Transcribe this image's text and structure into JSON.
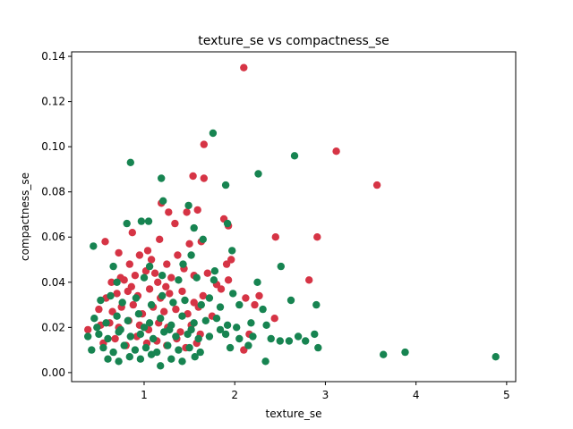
{
  "chart_data": {
    "type": "scatter",
    "title": "texture_se vs compactness_se",
    "xlabel": "texture_se",
    "ylabel": "compactness_se",
    "xlim": [
      0.2,
      5.1
    ],
    "ylim": [
      -0.004,
      0.142
    ],
    "x_ticks": [
      1,
      2,
      3,
      4,
      5
    ],
    "x_tick_labels": [
      "1",
      "2",
      "3",
      "4",
      "5"
    ],
    "y_ticks": [
      0.0,
      0.02,
      0.04,
      0.06,
      0.08,
      0.1,
      0.12,
      0.14
    ],
    "y_tick_labels": [
      "0.00",
      "0.02",
      "0.04",
      "0.06",
      "0.08",
      "0.10",
      "0.12",
      "0.14"
    ],
    "grid": false,
    "legend": "none",
    "colors": {
      "series_red": "#d63445",
      "series_green": "#178451"
    },
    "series": [
      {
        "color": "#d63445",
        "points": [
          [
            2.1,
            0.135
          ],
          [
            3.12,
            0.098
          ],
          [
            3.57,
            0.083
          ],
          [
            1.66,
            0.101
          ],
          [
            1.54,
            0.087
          ],
          [
            1.66,
            0.086
          ],
          [
            1.59,
            0.072
          ],
          [
            1.19,
            0.075
          ],
          [
            1.27,
            0.071
          ],
          [
            1.47,
            0.071
          ],
          [
            1.34,
            0.066
          ],
          [
            1.88,
            0.068
          ],
          [
            1.93,
            0.065
          ],
          [
            2.45,
            0.06
          ],
          [
            2.91,
            0.06
          ],
          [
            0.57,
            0.058
          ],
          [
            0.87,
            0.062
          ],
          [
            1.04,
            0.054
          ],
          [
            1.17,
            0.059
          ],
          [
            1.5,
            0.057
          ],
          [
            1.63,
            0.058
          ],
          [
            0.72,
            0.053
          ],
          [
            0.84,
            0.048
          ],
          [
            0.95,
            0.052
          ],
          [
            1.08,
            0.05
          ],
          [
            1.25,
            0.048
          ],
          [
            1.37,
            0.052
          ],
          [
            1.44,
            0.046
          ],
          [
            1.91,
            0.048
          ],
          [
            1.96,
            0.05
          ],
          [
            0.64,
            0.04
          ],
          [
            0.78,
            0.041
          ],
          [
            0.9,
            0.043
          ],
          [
            1.02,
            0.045
          ],
          [
            1.15,
            0.04
          ],
          [
            1.3,
            0.042
          ],
          [
            1.55,
            0.043
          ],
          [
            1.7,
            0.044
          ],
          [
            1.8,
            0.039
          ],
          [
            1.93,
            0.041
          ],
          [
            2.82,
            0.041
          ],
          [
            0.58,
            0.033
          ],
          [
            0.7,
            0.035
          ],
          [
            0.82,
            0.036
          ],
          [
            0.93,
            0.034
          ],
          [
            1.06,
            0.037
          ],
          [
            1.18,
            0.033
          ],
          [
            1.28,
            0.035
          ],
          [
            1.42,
            0.036
          ],
          [
            1.55,
            0.031
          ],
          [
            1.65,
            0.034
          ],
          [
            1.85,
            0.037
          ],
          [
            2.12,
            0.033
          ],
          [
            2.27,
            0.034
          ],
          [
            2.22,
            0.03
          ],
          [
            0.5,
            0.028
          ],
          [
            0.65,
            0.027
          ],
          [
            0.75,
            0.029
          ],
          [
            0.88,
            0.03
          ],
          [
            0.98,
            0.026
          ],
          [
            1.1,
            0.029
          ],
          [
            1.22,
            0.027
          ],
          [
            1.35,
            0.028
          ],
          [
            1.48,
            0.026
          ],
          [
            1.6,
            0.029
          ],
          [
            1.75,
            0.025
          ],
          [
            2.44,
            0.024
          ],
          [
            0.38,
            0.019
          ],
          [
            0.52,
            0.021
          ],
          [
            0.62,
            0.022
          ],
          [
            0.72,
            0.02
          ],
          [
            0.83,
            0.023
          ],
          [
            0.95,
            0.021
          ],
          [
            1.05,
            0.019
          ],
          [
            1.16,
            0.022
          ],
          [
            1.26,
            0.02
          ],
          [
            1.4,
            0.018
          ],
          [
            1.52,
            0.021
          ],
          [
            1.62,
            0.017
          ],
          [
            2.16,
            0.017
          ],
          [
            0.55,
            0.013
          ],
          [
            0.68,
            0.015
          ],
          [
            0.8,
            0.012
          ],
          [
            0.92,
            0.016
          ],
          [
            1.03,
            0.013
          ],
          [
            1.14,
            0.014
          ],
          [
            1.25,
            0.012
          ],
          [
            1.36,
            0.015
          ],
          [
            1.46,
            0.011
          ],
          [
            1.58,
            0.013
          ],
          [
            2.1,
            0.01
          ],
          [
            0.74,
            0.042
          ],
          [
            1.12,
            0.044
          ],
          [
            1.24,
            0.038
          ],
          [
            0.86,
            0.038
          ]
        ]
      },
      {
        "color": "#178451",
        "points": [
          [
            1.76,
            0.106
          ],
          [
            2.66,
            0.096
          ],
          [
            0.85,
            0.093
          ],
          [
            1.19,
            0.086
          ],
          [
            2.26,
            0.088
          ],
          [
            1.9,
            0.083
          ],
          [
            1.21,
            0.076
          ],
          [
            1.49,
            0.074
          ],
          [
            0.97,
            0.067
          ],
          [
            1.05,
            0.067
          ],
          [
            0.81,
            0.066
          ],
          [
            1.55,
            0.064
          ],
          [
            1.92,
            0.066
          ],
          [
            0.44,
            0.056
          ],
          [
            1.65,
            0.059
          ],
          [
            1.97,
            0.054
          ],
          [
            1.52,
            0.052
          ],
          [
            0.66,
            0.047
          ],
          [
            1.06,
            0.047
          ],
          [
            1.43,
            0.048
          ],
          [
            1.78,
            0.045
          ],
          [
            2.51,
            0.047
          ],
          [
            0.7,
            0.04
          ],
          [
            1.0,
            0.042
          ],
          [
            1.2,
            0.043
          ],
          [
            1.38,
            0.041
          ],
          [
            1.58,
            0.042
          ],
          [
            1.77,
            0.041
          ],
          [
            2.25,
            0.04
          ],
          [
            0.52,
            0.032
          ],
          [
            0.63,
            0.034
          ],
          [
            0.76,
            0.031
          ],
          [
            0.91,
            0.033
          ],
          [
            1.08,
            0.03
          ],
          [
            1.2,
            0.034
          ],
          [
            1.32,
            0.031
          ],
          [
            1.45,
            0.032
          ],
          [
            1.63,
            0.03
          ],
          [
            1.72,
            0.033
          ],
          [
            1.84,
            0.029
          ],
          [
            1.98,
            0.035
          ],
          [
            2.05,
            0.03
          ],
          [
            2.31,
            0.028
          ],
          [
            2.62,
            0.032
          ],
          [
            2.9,
            0.03
          ],
          [
            0.45,
            0.024
          ],
          [
            0.58,
            0.022
          ],
          [
            0.7,
            0.025
          ],
          [
            0.82,
            0.023
          ],
          [
            0.94,
            0.026
          ],
          [
            1.06,
            0.022
          ],
          [
            1.18,
            0.024
          ],
          [
            1.3,
            0.021
          ],
          [
            1.42,
            0.025
          ],
          [
            1.55,
            0.022
          ],
          [
            1.68,
            0.023
          ],
          [
            1.8,
            0.024
          ],
          [
            1.92,
            0.021
          ],
          [
            2.02,
            0.02
          ],
          [
            2.18,
            0.022
          ],
          [
            2.35,
            0.021
          ],
          [
            0.38,
            0.016
          ],
          [
            0.5,
            0.017
          ],
          [
            0.6,
            0.015
          ],
          [
            0.72,
            0.018
          ],
          [
            0.85,
            0.016
          ],
          [
            0.96,
            0.017
          ],
          [
            1.1,
            0.015
          ],
          [
            1.22,
            0.018
          ],
          [
            1.35,
            0.016
          ],
          [
            1.48,
            0.017
          ],
          [
            1.6,
            0.015
          ],
          [
            1.72,
            0.016
          ],
          [
            1.9,
            0.017
          ],
          [
            2.05,
            0.015
          ],
          [
            2.2,
            0.016
          ],
          [
            2.4,
            0.015
          ],
          [
            2.7,
            0.016
          ],
          [
            2.88,
            0.017
          ],
          [
            0.42,
            0.01
          ],
          [
            0.55,
            0.011
          ],
          [
            0.66,
            0.009
          ],
          [
            0.78,
            0.012
          ],
          [
            0.9,
            0.01
          ],
          [
            1.02,
            0.011
          ],
          [
            1.14,
            0.009
          ],
          [
            1.26,
            0.012
          ],
          [
            1.38,
            0.01
          ],
          [
            1.5,
            0.011
          ],
          [
            1.62,
            0.009
          ],
          [
            1.95,
            0.011
          ],
          [
            2.15,
            0.012
          ],
          [
            2.5,
            0.014
          ],
          [
            2.6,
            0.014
          ],
          [
            2.78,
            0.014
          ],
          [
            2.92,
            0.011
          ],
          [
            0.6,
            0.006
          ],
          [
            0.72,
            0.005
          ],
          [
            0.84,
            0.007
          ],
          [
            0.96,
            0.006
          ],
          [
            1.08,
            0.008
          ],
          [
            1.18,
            0.003
          ],
          [
            1.3,
            0.006
          ],
          [
            1.42,
            0.005
          ],
          [
            1.56,
            0.007
          ],
          [
            2.34,
            0.005
          ],
          [
            3.64,
            0.008
          ],
          [
            3.88,
            0.009
          ],
          [
            4.88,
            0.007
          ],
          [
            0.48,
            0.02
          ],
          [
            0.74,
            0.019
          ],
          [
            1.0,
            0.02
          ],
          [
            1.28,
            0.019
          ],
          [
            1.52,
            0.019
          ],
          [
            1.84,
            0.019
          ]
        ]
      }
    ]
  }
}
